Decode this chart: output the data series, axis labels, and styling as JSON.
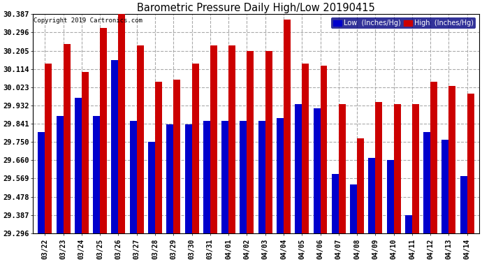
{
  "title": "Barometric Pressure Daily High/Low 20190415",
  "copyright": "Copyright 2019 Cartronics.com",
  "legend_low": "Low  (Inches/Hg)",
  "legend_high": "High  (Inches/Hg)",
  "dates": [
    "03/22",
    "03/23",
    "03/24",
    "03/25",
    "03/26",
    "03/27",
    "03/28",
    "03/29",
    "03/30",
    "03/31",
    "04/01",
    "04/02",
    "04/03",
    "04/04",
    "04/05",
    "04/06",
    "04/07",
    "04/08",
    "04/09",
    "04/10",
    "04/11",
    "04/12",
    "04/13",
    "04/14"
  ],
  "low": [
    29.8,
    29.88,
    29.97,
    29.88,
    30.16,
    29.855,
    29.75,
    29.84,
    29.84,
    29.855,
    29.855,
    29.855,
    29.855,
    29.87,
    29.94,
    29.92,
    29.59,
    29.54,
    29.67,
    29.66,
    29.387,
    29.8,
    29.76,
    29.58
  ],
  "high": [
    30.14,
    30.24,
    30.1,
    30.32,
    30.387,
    30.23,
    30.05,
    30.06,
    30.14,
    30.23,
    30.23,
    30.205,
    30.205,
    30.36,
    30.14,
    30.13,
    29.94,
    29.77,
    29.95,
    29.94,
    29.94,
    30.05,
    30.03,
    29.99
  ],
  "ymin": 29.296,
  "ymax": 30.387,
  "yticks": [
    29.296,
    29.387,
    29.478,
    29.569,
    29.66,
    29.75,
    29.841,
    29.932,
    30.023,
    30.114,
    30.205,
    30.296,
    30.387
  ],
  "low_color": "#0000cc",
  "high_color": "#cc0000",
  "bg_color": "#ffffff",
  "grid_color": "#aaaaaa",
  "bar_width": 0.38
}
